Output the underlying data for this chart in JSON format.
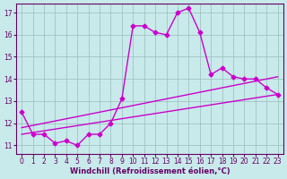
{
  "xlabel": "Windchill (Refroidissement éolien,°C)",
  "background_color": "#c8eaea",
  "line_color": "#cc00cc",
  "grid_color": "#99bbbb",
  "xlim": [
    -0.5,
    23.5
  ],
  "ylim": [
    10.6,
    17.4
  ],
  "yticks": [
    11,
    12,
    13,
    14,
    15,
    16,
    17
  ],
  "xticks": [
    0,
    1,
    2,
    3,
    4,
    5,
    6,
    7,
    8,
    9,
    10,
    11,
    12,
    13,
    14,
    15,
    16,
    17,
    18,
    19,
    20,
    21,
    22,
    23
  ],
  "line1_x": [
    0,
    1,
    2,
    3,
    4,
    5,
    6,
    7,
    8,
    9,
    10,
    11,
    12,
    13,
    14,
    15,
    16,
    17,
    18,
    19,
    20,
    21,
    22,
    23
  ],
  "line1_y": [
    12.5,
    11.5,
    11.5,
    11.1,
    11.2,
    11.0,
    11.5,
    11.5,
    12.0,
    13.1,
    16.4,
    16.4,
    16.1,
    16.0,
    17.0,
    17.2,
    16.1,
    14.2,
    14.5,
    14.1,
    14.0,
    14.0,
    13.6,
    13.3
  ],
  "line2_x": [
    0,
    23
  ],
  "line2_y": [
    11.8,
    14.1
  ],
  "line3_x": [
    0,
    23
  ],
  "line3_y": [
    11.5,
    13.3
  ],
  "marker": "D",
  "marker_size": 2.5,
  "linewidth": 1.0,
  "font_color": "#660066",
  "tick_fontsize": 5.5,
  "label_fontsize": 6.0
}
